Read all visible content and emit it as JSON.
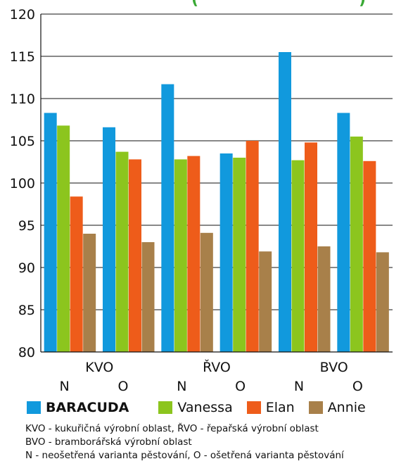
{
  "chart_data": {
    "type": "bar",
    "title_fragment": "(",
    "title_fragment_end": ")",
    "ylim": [
      80,
      120
    ],
    "yticks": [
      80,
      85,
      90,
      95,
      100,
      105,
      110,
      115,
      120
    ],
    "groups": [
      "KVO",
      "ŘVO",
      "BVO"
    ],
    "categories": [
      "N",
      "O",
      "N",
      "O",
      "N",
      "O"
    ],
    "series": [
      {
        "name": "BARACUDA",
        "color": "#1199dd",
        "values": [
          108.3,
          106.6,
          111.7,
          103.5,
          115.5,
          108.3
        ]
      },
      {
        "name": "Vanessa",
        "color": "#8cc51e",
        "values": [
          106.8,
          103.7,
          102.8,
          103.0,
          102.7,
          105.5
        ]
      },
      {
        "name": "Elan",
        "color": "#ee5c1a",
        "values": [
          98.4,
          102.8,
          103.2,
          105.0,
          104.8,
          102.6
        ]
      },
      {
        "name": "Annie",
        "color": "#a8804a",
        "values": [
          94.0,
          93.0,
          94.1,
          91.9,
          92.5,
          91.8
        ]
      }
    ],
    "grid": "horizontal",
    "legend_position": "bottom",
    "notes": [
      "KVO - kukuřičná výrobní oblast, ŘVO - řepařská výrobní oblast",
      "BVO - bramborářská výrobní oblast",
      "N - neošetřená varianta pěstování, O - ošetřená varianta pěstování"
    ]
  }
}
